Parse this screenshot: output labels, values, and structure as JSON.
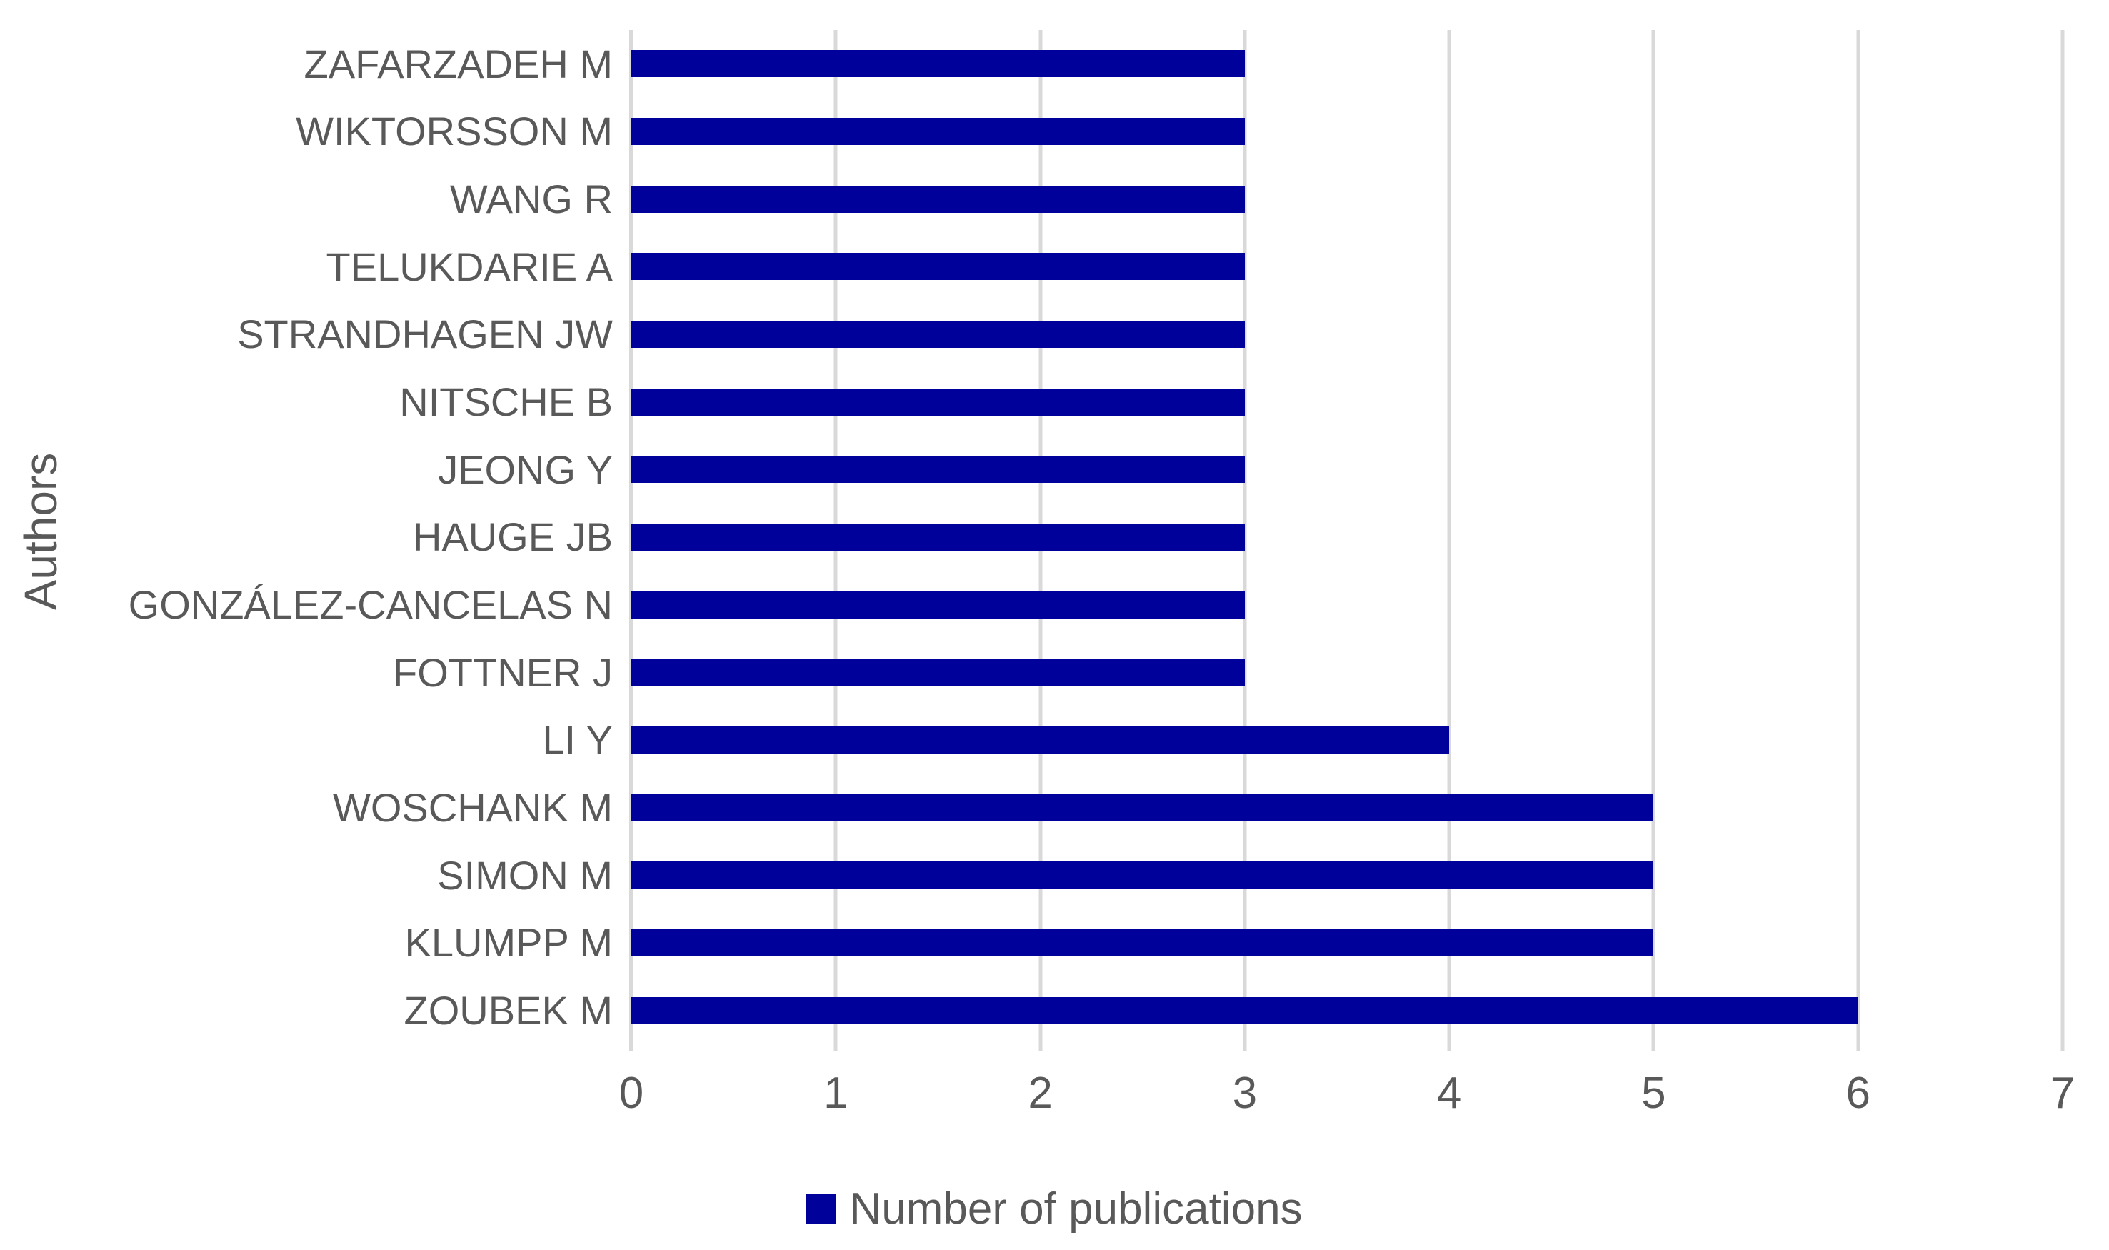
{
  "chart": {
    "background_color": "#FFFFFF",
    "text_color": "#595959",
    "gridline_color": "#D9D9D9",
    "bar_color": "#00009B"
  },
  "chart_data": {
    "type": "bar",
    "orientation": "horizontal",
    "title": "",
    "xlabel": "",
    "ylabel": "Authors",
    "categories": [
      "ZAFARZADEH M",
      "WIKTORSSON M",
      "WANG R",
      "TELUKDARIE A",
      "STRANDHAGEN JW",
      "NITSCHE B",
      "JEONG Y",
      "HAUGE JB",
      "GONZÁLEZ-CANCELAS N",
      "FOTTNER J",
      "LI Y",
      "WOSCHANK M",
      "SIMON M",
      "KLUMPP M",
      "ZOUBEK M"
    ],
    "series": [
      {
        "name": "Number of publications",
        "values": [
          3,
          3,
          3,
          3,
          3,
          3,
          3,
          3,
          3,
          3,
          4,
          5,
          5,
          5,
          6
        ]
      }
    ],
    "xlim": [
      0,
      7
    ],
    "xticks": [
      "0",
      "1",
      "2",
      "3",
      "4",
      "5",
      "6",
      "7"
    ],
    "grid": true,
    "legend_position": "bottom",
    "bar_color": "#00009B",
    "gridline_color": "#D9D9D9",
    "tick_color": "#595959"
  }
}
